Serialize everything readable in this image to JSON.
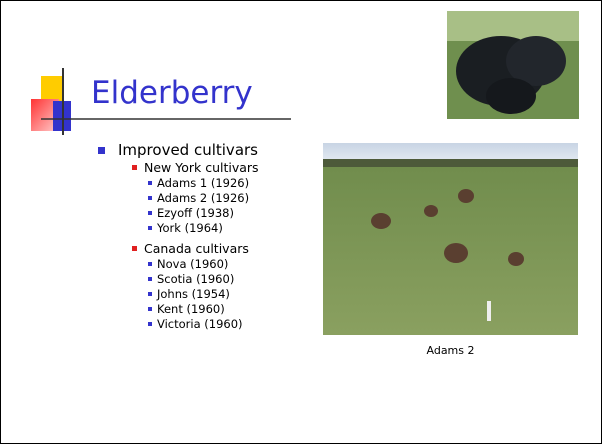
{
  "slide": {
    "title": "Elderberry",
    "bullets": [
      {
        "text": "Improved cultivars",
        "children": [
          {
            "text": "New York cultivars",
            "children": [
              "Adams 1 (1926)",
              "Adams 2 (1926)",
              "Ezyoff (1938)",
              "York (1964)"
            ]
          },
          {
            "text": "Canada cultivars",
            "children": [
              "Nova (1960)",
              "Scotia (1960)",
              "Johns (1954)",
              "Kent (1960)",
              "Victoria (1960)"
            ]
          }
        ]
      }
    ],
    "figure": {
      "caption": "Adams 2"
    }
  }
}
